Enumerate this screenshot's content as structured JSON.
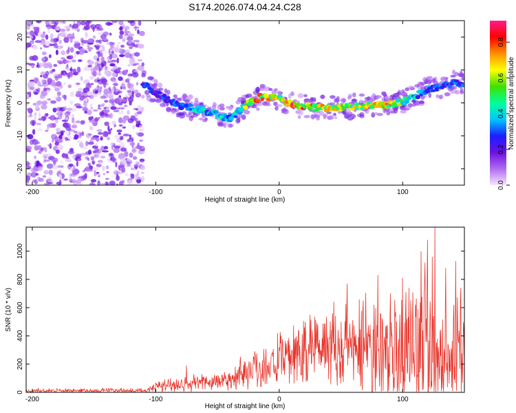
{
  "figure_title": "S174.2026.074.04.24.C28",
  "colors": {
    "snr_line": "#e8342a",
    "axis": "#000000"
  },
  "chart_data": [
    {
      "type": "heatmap",
      "name": "spectrogram",
      "xlabel": "Height of straight line (km)",
      "ylabel": "Frequency (Hz)",
      "xlim": [
        -205,
        150
      ],
      "ylim": [
        -25,
        25
      ],
      "xticks": [
        -200,
        -100,
        0,
        100
      ],
      "yticks": [
        -20,
        -10,
        0,
        10,
        20
      ],
      "xtick_labels": [
        "-200",
        "-100",
        "0",
        "100"
      ],
      "ytick_labels": [
        "-20",
        "-10",
        "0",
        "10",
        "20"
      ],
      "colorbar": {
        "label": "Normalized spectral amplitude",
        "range": [
          0,
          0.92
        ],
        "ticks": [
          0.0,
          0.2,
          0.4,
          0.6,
          0.8
        ],
        "tick_labels": [
          "0.0",
          "0.2",
          "0.4",
          "0.6",
          "0.8"
        ],
        "stops": [
          "#f4e6ff",
          "#b06cf0",
          "#6a10e0",
          "#1a20ff",
          "#00c8ff",
          "#00ff9a",
          "#40e000",
          "#ffff00",
          "#ff9000",
          "#ff0000",
          "#ff1e8c"
        ]
      },
      "ridge_frequency_hz": {
        "x": [
          -110,
          -100,
          -90,
          -80,
          -70,
          -60,
          -50,
          -45,
          -40,
          -35,
          -30,
          -25,
          -20,
          -15,
          -10,
          -5,
          0,
          5,
          10,
          20,
          30,
          40,
          50,
          60,
          70,
          80,
          90,
          100,
          110,
          120,
          130,
          140,
          150
        ],
        "freq": [
          6,
          3,
          1,
          -1,
          -1.5,
          -2.5,
          -3.5,
          -4.5,
          -5,
          -3.5,
          -1.5,
          0,
          1,
          2,
          1.5,
          1.5,
          2,
          0.5,
          -0.5,
          -1,
          -1.5,
          -1.5,
          -1.5,
          -1,
          -1,
          -0.5,
          -0.5,
          0.5,
          2,
          4,
          5,
          6,
          6
        ],
        "amplitude": [
          0.35,
          0.3,
          0.35,
          0.4,
          0.45,
          0.45,
          0.5,
          0.5,
          0.35,
          0.5,
          0.6,
          0.75,
          0.85,
          0.8,
          0.8,
          0.75,
          0.7,
          0.9,
          0.92,
          0.85,
          0.8,
          0.75,
          0.7,
          0.7,
          0.75,
          0.8,
          0.8,
          0.65,
          0.45,
          0.4,
          0.35,
          0.35,
          0.35
        ]
      },
      "noise_region_x": [
        -205,
        -110
      ],
      "noise_amplitude_max": 0.2
    },
    {
      "type": "line",
      "name": "snr",
      "xlabel": "Height of straight line (km)",
      "ylabel": "SNR (10 * v/v)",
      "xlim": [
        -205,
        150
      ],
      "ylim": [
        0,
        1170
      ],
      "xticks": [
        -200,
        -100,
        0,
        100
      ],
      "yticks": [
        0,
        200,
        400,
        600,
        800,
        1000
      ],
      "xtick_labels": [
        "-200",
        "-100",
        "0",
        "100"
      ],
      "ytick_labels": [
        "0",
        "200",
        "400",
        "600",
        "800",
        "1000"
      ],
      "envelope": {
        "x": [
          -205,
          -150,
          -120,
          -105,
          -100,
          -80,
          -60,
          -40,
          -30,
          -20,
          -10,
          0,
          10,
          20,
          30,
          40,
          50,
          60,
          70,
          80,
          90,
          100,
          110,
          120,
          130,
          140,
          150
        ],
        "base": [
          10,
          10,
          12,
          15,
          40,
          60,
          70,
          90,
          140,
          170,
          190,
          220,
          260,
          300,
          330,
          360,
          340,
          320,
          320,
          300,
          300,
          300,
          320,
          350,
          320,
          300,
          300
        ],
        "amp": [
          20,
          20,
          25,
          30,
          60,
          70,
          80,
          100,
          160,
          180,
          200,
          230,
          260,
          300,
          340,
          380,
          420,
          440,
          460,
          470,
          480,
          520,
          600,
          700,
          550,
          520,
          450
        ]
      },
      "peaks": [
        {
          "x": 43,
          "y": 560
        },
        {
          "x": 55,
          "y": 770
        },
        {
          "x": 68,
          "y": 650
        },
        {
          "x": 80,
          "y": 830
        },
        {
          "x": 90,
          "y": 700
        },
        {
          "x": 100,
          "y": 810
        },
        {
          "x": 105,
          "y": 740
        },
        {
          "x": 115,
          "y": 1000
        },
        {
          "x": 120,
          "y": 1080
        },
        {
          "x": 124,
          "y": 960
        },
        {
          "x": 126,
          "y": 1170
        },
        {
          "x": 135,
          "y": 880
        },
        {
          "x": 143,
          "y": 930
        },
        {
          "x": 147,
          "y": 740
        },
        {
          "x": -75,
          "y": 190
        },
        {
          "x": -20,
          "y": 290
        }
      ]
    }
  ]
}
